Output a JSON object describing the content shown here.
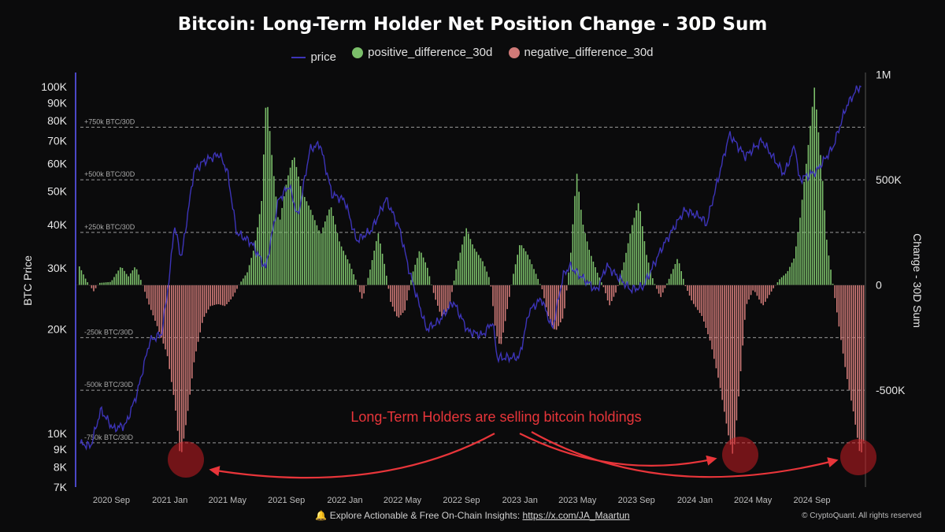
{
  "colors": {
    "background": "#0b0b0c",
    "price": "#3d34b8",
    "positive": "#7bbf6a",
    "negative": "#d07a78",
    "annotation": "#e8353a",
    "grid": "#9a9a9a",
    "axis_left": "#4b47c6"
  },
  "legend_icons": {
    "bell": "bell-icon"
  },
  "footer": {
    "prefix": "Explore Actionable & Free On-Chain Insights:",
    "link": "https://x.com/JA_Maartun",
    "copyright": "© CryptoQuant. All rights reserved"
  },
  "chart_data": {
    "type": "bar",
    "title": "Bitcoin: Long-Term Holder Net Position Change - 30D Sum",
    "legend": [
      "price",
      "positive_difference_30d",
      "negative_difference_30d"
    ],
    "legend_placement": "top-center",
    "grid": false,
    "y_left": {
      "label": "BTC Price",
      "scale": "log",
      "range": [
        7000,
        110000
      ],
      "ticks": [
        7000,
        8000,
        9000,
        10000,
        20000,
        30000,
        40000,
        50000,
        60000,
        70000,
        80000,
        90000,
        100000
      ],
      "tick_labels": [
        "7K",
        "8K",
        "9K",
        "10K",
        "20K",
        "30K",
        "40K",
        "50K",
        "60K",
        "70K",
        "80K",
        "90K",
        "100K"
      ]
    },
    "y_right": {
      "label": "Change - 30D Sum",
      "range": [
        -960000,
        1010000
      ],
      "ticks": [
        1000000,
        500000,
        0,
        -500000
      ],
      "tick_labels": [
        "1M",
        "500K",
        "0",
        "-500K"
      ]
    },
    "x": {
      "range": [
        "2020-06-20",
        "2024-12-20"
      ],
      "tick_dates": [
        "2020-09-01",
        "2021-01-01",
        "2021-05-01",
        "2021-09-01",
        "2022-01-01",
        "2022-05-01",
        "2022-09-01",
        "2023-01-01",
        "2023-05-01",
        "2023-09-01",
        "2024-01-01",
        "2024-05-01",
        "2024-09-01"
      ],
      "tick_labels": [
        "2020 Sep",
        "2021 Jan",
        "2021 May",
        "2021 Sep",
        "2022 Jan",
        "2022 May",
        "2022 Sep",
        "2023 Jan",
        "2023 May",
        "2023 Sep",
        "2024 Jan",
        "2024 May",
        "2024 Sep"
      ]
    },
    "reference_lines": [
      {
        "value": 750000,
        "label": "+750k BTC/30D"
      },
      {
        "value": 500000,
        "label": "+500k BTC/30D"
      },
      {
        "value": 250000,
        "label": "+250k BTC/30D"
      },
      {
        "value": -250000,
        "label": "-250k BTC/30D"
      },
      {
        "value": -500000,
        "label": "-500k BTC/30D"
      },
      {
        "value": -750000,
        "label": "-750k BTC/30D"
      }
    ],
    "price_series": {
      "name": "price",
      "points": [
        [
          "2020-06-20",
          9400
        ],
        [
          "2020-07-20",
          9200
        ],
        [
          "2020-08-10",
          11700
        ],
        [
          "2020-09-05",
          10300
        ],
        [
          "2020-10-01",
          10600
        ],
        [
          "2020-10-25",
          13100
        ],
        [
          "2020-11-20",
          18500
        ],
        [
          "2020-12-15",
          19400
        ],
        [
          "2021-01-01",
          29000
        ],
        [
          "2021-01-10",
          40000
        ],
        [
          "2021-01-25",
          32000
        ],
        [
          "2021-02-20",
          57000
        ],
        [
          "2021-03-13",
          61000
        ],
        [
          "2021-04-14",
          64000
        ],
        [
          "2021-05-01",
          57000
        ],
        [
          "2021-05-20",
          38000
        ],
        [
          "2021-06-20",
          35500
        ],
        [
          "2021-07-20",
          30000
        ],
        [
          "2021-08-15",
          47000
        ],
        [
          "2021-09-07",
          52000
        ],
        [
          "2021-09-25",
          42000
        ],
        [
          "2021-10-20",
          66000
        ],
        [
          "2021-11-10",
          68500
        ],
        [
          "2021-12-05",
          49000
        ],
        [
          "2022-01-01",
          47000
        ],
        [
          "2022-01-25",
          36000
        ],
        [
          "2022-02-25",
          38500
        ],
        [
          "2022-03-28",
          47500
        ],
        [
          "2022-04-25",
          39000
        ],
        [
          "2022-05-15",
          29500
        ],
        [
          "2022-06-20",
          20000
        ],
        [
          "2022-07-15",
          21000
        ],
        [
          "2022-08-15",
          24000
        ],
        [
          "2022-09-15",
          19700
        ],
        [
          "2022-10-15",
          19200
        ],
        [
          "2022-11-05",
          21000
        ],
        [
          "2022-11-15",
          16500
        ],
        [
          "2022-12-31",
          16600
        ],
        [
          "2023-01-20",
          22500
        ],
        [
          "2023-02-15",
          24500
        ],
        [
          "2023-03-10",
          20000
        ],
        [
          "2023-04-01",
          28500
        ],
        [
          "2023-04-15",
          30400
        ],
        [
          "2023-06-10",
          25800
        ],
        [
          "2023-07-01",
          30500
        ],
        [
          "2023-08-20",
          26000
        ],
        [
          "2023-09-15",
          26500
        ],
        [
          "2023-10-25",
          34500
        ],
        [
          "2023-12-10",
          44000
        ],
        [
          "2024-01-15",
          42000
        ],
        [
          "2024-01-25",
          40000
        ],
        [
          "2024-03-13",
          73000
        ],
        [
          "2024-04-15",
          63000
        ],
        [
          "2024-05-20",
          70000
        ],
        [
          "2024-07-05",
          56000
        ],
        [
          "2024-07-28",
          68000
        ],
        [
          "2024-08-05",
          54000
        ],
        [
          "2024-09-10",
          57000
        ],
        [
          "2024-10-15",
          67000
        ],
        [
          "2024-11-12",
          88000
        ],
        [
          "2024-12-05",
          99000
        ],
        [
          "2024-12-18",
          101000
        ]
      ]
    },
    "net_position_change": {
      "name": "Change - 30D Sum",
      "points": [
        [
          "2020-06-20",
          0
        ],
        [
          "2020-06-25",
          90000
        ],
        [
          "2020-07-10",
          20000
        ],
        [
          "2020-07-25",
          -30000
        ],
        [
          "2020-08-05",
          10000
        ],
        [
          "2020-08-30",
          15000
        ],
        [
          "2020-09-20",
          90000
        ],
        [
          "2020-10-05",
          40000
        ],
        [
          "2020-10-20",
          90000
        ],
        [
          "2020-11-05",
          -5000
        ],
        [
          "2020-11-15",
          -80000
        ],
        [
          "2020-12-05",
          -200000
        ],
        [
          "2020-12-25",
          -330000
        ],
        [
          "2021-01-10",
          -560000
        ],
        [
          "2021-01-22",
          -830000
        ],
        [
          "2021-02-05",
          -620000
        ],
        [
          "2021-02-20",
          -350000
        ],
        [
          "2021-03-10",
          -160000
        ],
        [
          "2021-03-25",
          -100000
        ],
        [
          "2021-04-10",
          -90000
        ],
        [
          "2021-04-25",
          -100000
        ],
        [
          "2021-05-10",
          -60000
        ],
        [
          "2021-05-25",
          5000
        ],
        [
          "2021-06-10",
          60000
        ],
        [
          "2021-06-25",
          180000
        ],
        [
          "2021-07-10",
          400000
        ],
        [
          "2021-07-20",
          920000
        ],
        [
          "2021-08-01",
          600000
        ],
        [
          "2021-08-15",
          280000
        ],
        [
          "2021-09-01",
          500000
        ],
        [
          "2021-09-15",
          620000
        ],
        [
          "2021-10-01",
          450000
        ],
        [
          "2021-10-20",
          360000
        ],
        [
          "2021-11-10",
          240000
        ],
        [
          "2021-12-01",
          380000
        ],
        [
          "2021-12-20",
          200000
        ],
        [
          "2022-01-10",
          100000
        ],
        [
          "2022-01-25",
          10000
        ],
        [
          "2022-02-05",
          -70000
        ],
        [
          "2022-02-20",
          60000
        ],
        [
          "2022-03-10",
          250000
        ],
        [
          "2022-03-25",
          80000
        ],
        [
          "2022-04-05",
          -80000
        ],
        [
          "2022-04-20",
          -160000
        ],
        [
          "2022-05-05",
          -120000
        ],
        [
          "2022-05-20",
          50000
        ],
        [
          "2022-06-05",
          170000
        ],
        [
          "2022-06-20",
          90000
        ],
        [
          "2022-07-05",
          -50000
        ],
        [
          "2022-07-20",
          -150000
        ],
        [
          "2022-08-05",
          -110000
        ],
        [
          "2022-08-20",
          80000
        ],
        [
          "2022-09-10",
          270000
        ],
        [
          "2022-09-25",
          180000
        ],
        [
          "2022-10-15",
          110000
        ],
        [
          "2022-10-30",
          20000
        ],
        [
          "2022-11-10",
          -220000
        ],
        [
          "2022-11-20",
          -300000
        ],
        [
          "2022-12-01",
          -160000
        ],
        [
          "2022-12-15",
          30000
        ],
        [
          "2022-12-31",
          200000
        ],
        [
          "2023-01-15",
          150000
        ],
        [
          "2023-02-01",
          60000
        ],
        [
          "2023-02-15",
          -20000
        ],
        [
          "2023-03-01",
          -160000
        ],
        [
          "2023-03-15",
          -220000
        ],
        [
          "2023-04-01",
          -150000
        ],
        [
          "2023-04-15",
          130000
        ],
        [
          "2023-04-28",
          540000
        ],
        [
          "2023-05-10",
          300000
        ],
        [
          "2023-05-25",
          160000
        ],
        [
          "2023-06-10",
          60000
        ],
        [
          "2023-06-25",
          -20000
        ],
        [
          "2023-07-05",
          -100000
        ],
        [
          "2023-07-20",
          -30000
        ],
        [
          "2023-08-05",
          110000
        ],
        [
          "2023-08-20",
          270000
        ],
        [
          "2023-09-05",
          400000
        ],
        [
          "2023-09-20",
          150000
        ],
        [
          "2023-10-05",
          20000
        ],
        [
          "2023-10-20",
          -60000
        ],
        [
          "2023-11-05",
          20000
        ],
        [
          "2023-11-25",
          130000
        ],
        [
          "2023-12-10",
          0
        ],
        [
          "2023-12-25",
          -80000
        ],
        [
          "2024-01-15",
          -150000
        ],
        [
          "2024-02-01",
          -270000
        ],
        [
          "2024-02-20",
          -470000
        ],
        [
          "2024-03-10",
          -720000
        ],
        [
          "2024-03-20",
          -820000
        ],
        [
          "2024-04-01",
          -500000
        ],
        [
          "2024-04-15",
          -100000
        ],
        [
          "2024-05-01",
          -20000
        ],
        [
          "2024-05-20",
          -100000
        ],
        [
          "2024-06-10",
          -20000
        ],
        [
          "2024-06-25",
          30000
        ],
        [
          "2024-07-10",
          60000
        ],
        [
          "2024-07-25",
          130000
        ],
        [
          "2024-08-05",
          300000
        ],
        [
          "2024-08-20",
          600000
        ],
        [
          "2024-09-05",
          940000
        ],
        [
          "2024-09-20",
          560000
        ],
        [
          "2024-10-01",
          200000
        ],
        [
          "2024-10-15",
          -20000
        ],
        [
          "2024-10-25",
          -180000
        ],
        [
          "2024-11-10",
          -420000
        ],
        [
          "2024-11-25",
          -600000
        ],
        [
          "2024-12-10",
          -820000
        ],
        [
          "2024-12-20",
          -700000
        ]
      ]
    },
    "annotations": [
      {
        "text": "Long-Term Holders are selling bitcoin holdings"
      }
    ]
  }
}
